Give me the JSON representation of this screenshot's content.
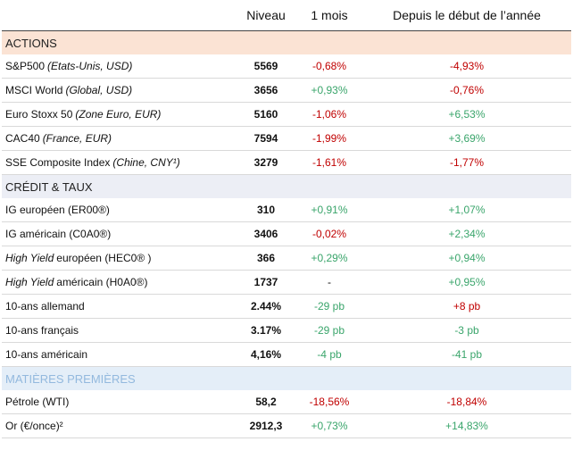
{
  "header": {
    "columns": [
      "Niveau",
      "1 mois",
      "Depuis le début de l’année"
    ]
  },
  "sections": [
    {
      "title": "ACTIONS",
      "style": "actions",
      "rows": [
        {
          "label": [
            {
              "text": "S&P500"
            },
            {
              "text": "(Etats-Unis, USD)",
              "italic": true
            }
          ],
          "cells": [
            "5569",
            "-0,68%",
            "-4,93%"
          ],
          "tones": [
            "plain",
            "neg",
            "neg"
          ]
        },
        {
          "label": [
            {
              "text": "MSCI World"
            },
            {
              "text": "(Global, USD)",
              "italic": true
            }
          ],
          "cells": [
            "3656",
            "+0,93%",
            "-0,76%"
          ],
          "tones": [
            "plain",
            "pos",
            "neg"
          ]
        },
        {
          "label": [
            {
              "text": "Euro Stoxx 50"
            },
            {
              "text": "(Zone Euro, EUR)",
              "italic": true
            }
          ],
          "cells": [
            "5160",
            "-1,06%",
            "+6,53%"
          ],
          "tones": [
            "plain",
            "neg",
            "pos"
          ]
        },
        {
          "label": [
            {
              "text": "CAC40"
            },
            {
              "text": "(France, EUR)",
              "italic": true
            }
          ],
          "cells": [
            "7594",
            "-1,99%",
            "+3,69%"
          ],
          "tones": [
            "plain",
            "neg",
            "pos"
          ]
        },
        {
          "label": [
            {
              "text": "SSE Composite Index"
            },
            {
              "text": "(Chine, CNY¹)",
              "italic": true
            }
          ],
          "cells": [
            "3279",
            "-1,61%",
            "-1,77%"
          ],
          "tones": [
            "plain",
            "neg",
            "neg"
          ]
        }
      ]
    },
    {
      "title": "CRÉDIT & TAUX",
      "style": "credit",
      "rows": [
        {
          "label": [
            {
              "text": "IG européen (ER00®)"
            }
          ],
          "cells": [
            "310",
            "+0,91%",
            "+1,07%"
          ],
          "tones": [
            "plain",
            "pos",
            "pos"
          ]
        },
        {
          "label": [
            {
              "text": "IG américain (C0A0®)"
            }
          ],
          "cells": [
            "3406",
            "-0,02%",
            "+2,34%"
          ],
          "tones": [
            "plain",
            "neg",
            "pos"
          ]
        },
        {
          "label": [
            {
              "text": "High Yield",
              "italic": true
            },
            {
              "text": "européen (HEC0® )"
            }
          ],
          "cells": [
            "366",
            "+0,29%",
            "+0,94%"
          ],
          "tones": [
            "plain",
            "pos",
            "pos"
          ]
        },
        {
          "label": [
            {
              "text": "High Yield",
              "italic": true
            },
            {
              "text": "américain (H0A0®)"
            }
          ],
          "cells": [
            "1737",
            "-",
            "+0,95%"
          ],
          "tones": [
            "plain",
            "plain",
            "pos"
          ]
        },
        {
          "label": [
            {
              "text": "10-ans allemand"
            }
          ],
          "cells": [
            "2.44%",
            "-29 pb",
            "+8 pb"
          ],
          "tones": [
            "plain",
            "pos",
            "neg"
          ]
        },
        {
          "label": [
            {
              "text": "10-ans français"
            }
          ],
          "cells": [
            "3.17%",
            "-29 pb",
            "-3 pb"
          ],
          "tones": [
            "plain",
            "pos",
            "pos"
          ]
        },
        {
          "label": [
            {
              "text": "10-ans américain"
            }
          ],
          "cells": [
            "4,16%",
            "-4 pb",
            "-41 pb"
          ],
          "tones": [
            "plain",
            "pos",
            "pos"
          ]
        }
      ]
    },
    {
      "title": "MATIÈRES PREMIÈRES",
      "style": "commodities",
      "rows": [
        {
          "label": [
            {
              "text": "Pétrole (WTI)"
            }
          ],
          "cells": [
            "58,2",
            "-18,56%",
            "-18,84%"
          ],
          "tones": [
            "plain",
            "neg",
            "neg"
          ]
        },
        {
          "label": [
            {
              "text": "Or (€/once)²"
            }
          ],
          "cells": [
            "2912,3",
            "+0,73%",
            "+14,83%"
          ],
          "tones": [
            "plain",
            "pos",
            "pos"
          ]
        }
      ]
    }
  ]
}
